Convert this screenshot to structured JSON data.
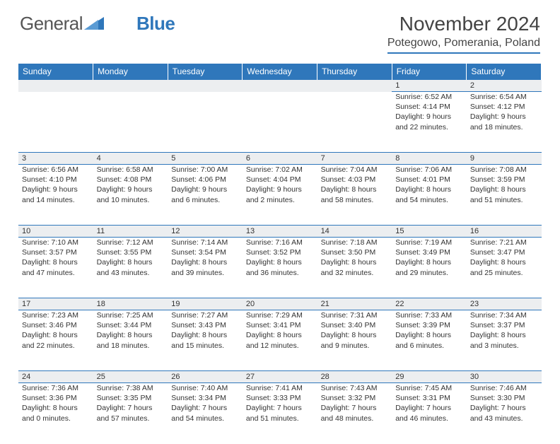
{
  "brand": {
    "part1": "General",
    "part2": "Blue"
  },
  "title": "November 2024",
  "location": "Potegowo, Pomerania, Poland",
  "colors": {
    "accent": "#2f77bb",
    "dayrow_bg": "#eceef0",
    "text": "#333333",
    "bg": "#ffffff"
  },
  "weekdays": [
    "Sunday",
    "Monday",
    "Tuesday",
    "Wednesday",
    "Thursday",
    "Friday",
    "Saturday"
  ],
  "weeks": [
    [
      null,
      null,
      null,
      null,
      null,
      {
        "n": "1",
        "sr": "6:52 AM",
        "ss": "4:14 PM",
        "dl": "9 hours and 22 minutes."
      },
      {
        "n": "2",
        "sr": "6:54 AM",
        "ss": "4:12 PM",
        "dl": "9 hours and 18 minutes."
      }
    ],
    [
      {
        "n": "3",
        "sr": "6:56 AM",
        "ss": "4:10 PM",
        "dl": "9 hours and 14 minutes."
      },
      {
        "n": "4",
        "sr": "6:58 AM",
        "ss": "4:08 PM",
        "dl": "9 hours and 10 minutes."
      },
      {
        "n": "5",
        "sr": "7:00 AM",
        "ss": "4:06 PM",
        "dl": "9 hours and 6 minutes."
      },
      {
        "n": "6",
        "sr": "7:02 AM",
        "ss": "4:04 PM",
        "dl": "9 hours and 2 minutes."
      },
      {
        "n": "7",
        "sr": "7:04 AM",
        "ss": "4:03 PM",
        "dl": "8 hours and 58 minutes."
      },
      {
        "n": "8",
        "sr": "7:06 AM",
        "ss": "4:01 PM",
        "dl": "8 hours and 54 minutes."
      },
      {
        "n": "9",
        "sr": "7:08 AM",
        "ss": "3:59 PM",
        "dl": "8 hours and 51 minutes."
      }
    ],
    [
      {
        "n": "10",
        "sr": "7:10 AM",
        "ss": "3:57 PM",
        "dl": "8 hours and 47 minutes."
      },
      {
        "n": "11",
        "sr": "7:12 AM",
        "ss": "3:55 PM",
        "dl": "8 hours and 43 minutes."
      },
      {
        "n": "12",
        "sr": "7:14 AM",
        "ss": "3:54 PM",
        "dl": "8 hours and 39 minutes."
      },
      {
        "n": "13",
        "sr": "7:16 AM",
        "ss": "3:52 PM",
        "dl": "8 hours and 36 minutes."
      },
      {
        "n": "14",
        "sr": "7:18 AM",
        "ss": "3:50 PM",
        "dl": "8 hours and 32 minutes."
      },
      {
        "n": "15",
        "sr": "7:19 AM",
        "ss": "3:49 PM",
        "dl": "8 hours and 29 minutes."
      },
      {
        "n": "16",
        "sr": "7:21 AM",
        "ss": "3:47 PM",
        "dl": "8 hours and 25 minutes."
      }
    ],
    [
      {
        "n": "17",
        "sr": "7:23 AM",
        "ss": "3:46 PM",
        "dl": "8 hours and 22 minutes."
      },
      {
        "n": "18",
        "sr": "7:25 AM",
        "ss": "3:44 PM",
        "dl": "8 hours and 18 minutes."
      },
      {
        "n": "19",
        "sr": "7:27 AM",
        "ss": "3:43 PM",
        "dl": "8 hours and 15 minutes."
      },
      {
        "n": "20",
        "sr": "7:29 AM",
        "ss": "3:41 PM",
        "dl": "8 hours and 12 minutes."
      },
      {
        "n": "21",
        "sr": "7:31 AM",
        "ss": "3:40 PM",
        "dl": "8 hours and 9 minutes."
      },
      {
        "n": "22",
        "sr": "7:33 AM",
        "ss": "3:39 PM",
        "dl": "8 hours and 6 minutes."
      },
      {
        "n": "23",
        "sr": "7:34 AM",
        "ss": "3:37 PM",
        "dl": "8 hours and 3 minutes."
      }
    ],
    [
      {
        "n": "24",
        "sr": "7:36 AM",
        "ss": "3:36 PM",
        "dl": "8 hours and 0 minutes."
      },
      {
        "n": "25",
        "sr": "7:38 AM",
        "ss": "3:35 PM",
        "dl": "7 hours and 57 minutes."
      },
      {
        "n": "26",
        "sr": "7:40 AM",
        "ss": "3:34 PM",
        "dl": "7 hours and 54 minutes."
      },
      {
        "n": "27",
        "sr": "7:41 AM",
        "ss": "3:33 PM",
        "dl": "7 hours and 51 minutes."
      },
      {
        "n": "28",
        "sr": "7:43 AM",
        "ss": "3:32 PM",
        "dl": "7 hours and 48 minutes."
      },
      {
        "n": "29",
        "sr": "7:45 AM",
        "ss": "3:31 PM",
        "dl": "7 hours and 46 minutes."
      },
      {
        "n": "30",
        "sr": "7:46 AM",
        "ss": "3:30 PM",
        "dl": "7 hours and 43 minutes."
      }
    ]
  ],
  "labels": {
    "sunrise": "Sunrise:",
    "sunset": "Sunset:",
    "daylight": "Daylight:"
  }
}
